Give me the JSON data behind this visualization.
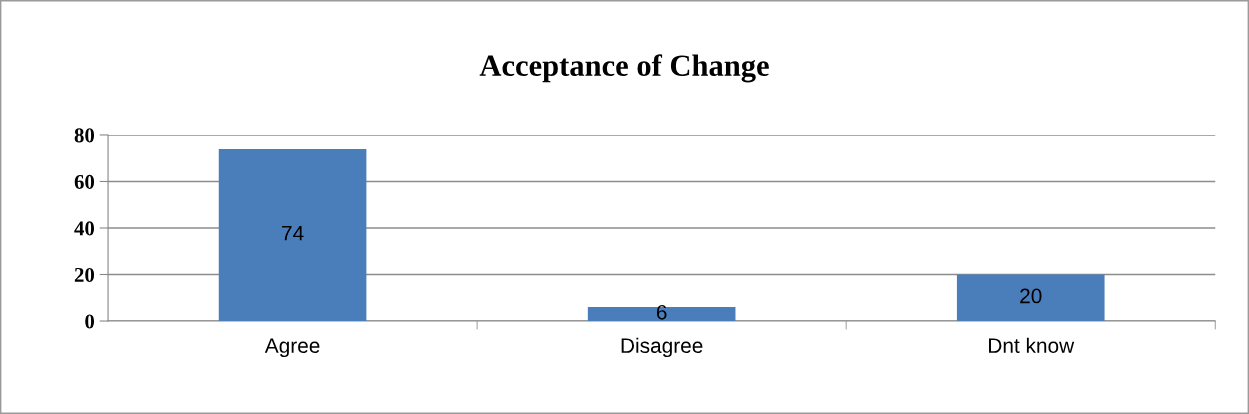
{
  "chart_data": {
    "type": "bar",
    "title": "Acceptance of Change",
    "categories": [
      "Agree",
      "Disagree",
      "Dnt know"
    ],
    "values": [
      74,
      6,
      20
    ],
    "color": "#4a7ebb",
    "ylim": [
      0,
      80
    ],
    "yticks": [
      0,
      20,
      40,
      60,
      80
    ],
    "grid": "y",
    "data_labels": true,
    "legend": false
  }
}
